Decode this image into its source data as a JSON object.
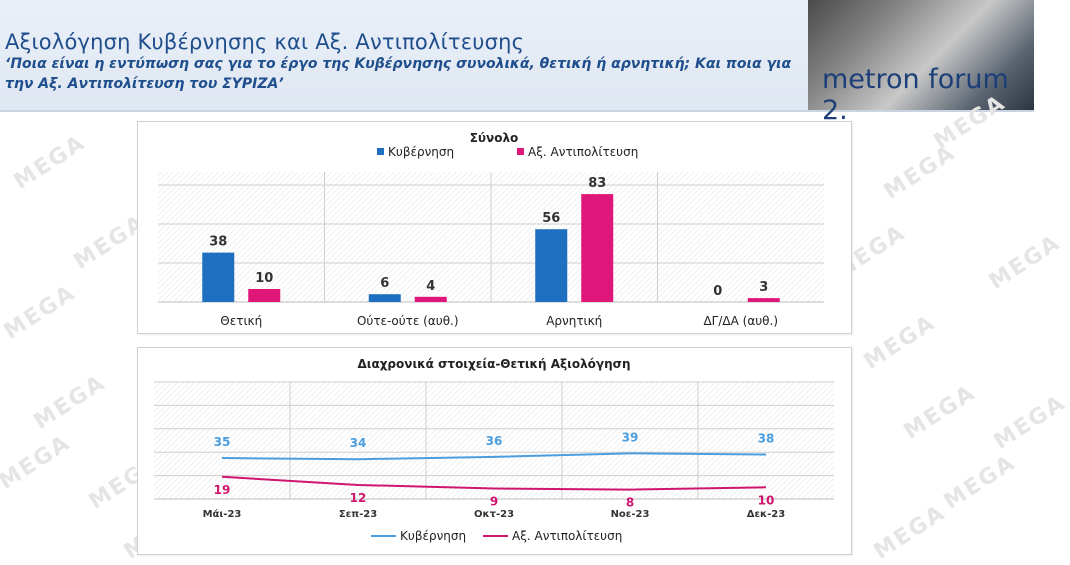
{
  "header": {
    "title": "Αξιολόγηση Κυβέρνησης και Αξ. Αντιπολίτευσης",
    "subtitle": "‘Ποια είναι η εντύπωση σας για το έργο της Κυβέρνησης συνολικά, θετική ή αρνητική; Και ποια για την Αξ. Αντιπολίτευση του ΣΥΡΙΖΑ’",
    "logo_text": "metron forum 2."
  },
  "watermark": {
    "text": "MEGA"
  },
  "colors": {
    "government": "#1f6fc0",
    "opposition": "#e0177a",
    "line_government": "#4a9ee0",
    "line_opposition": "#d0156f"
  },
  "chart_data": [
    {
      "type": "bar",
      "title": "Σύνολο",
      "categories": [
        "Θετική",
        "Ούτε-ούτε (αυθ.)",
        "Αρνητική",
        "ΔΓ/ΔΑ (αυθ.)"
      ],
      "series": [
        {
          "name": "Κυβέρνηση",
          "values": [
            38,
            6,
            56,
            0
          ]
        },
        {
          "name": "Αξ. Αντιπολίτευση",
          "values": [
            10,
            4,
            83,
            3
          ]
        }
      ],
      "ylim": [
        0,
        100
      ],
      "legend": "top",
      "grid": true
    },
    {
      "type": "line",
      "title": "Διαχρονικά στοιχεία-Θετική Αξιολόγηση",
      "x": [
        "Μάι-23",
        "Σεπ-23",
        "Οκτ-23",
        "Νοε-23",
        "Δεκ-23"
      ],
      "series": [
        {
          "name": "Κυβέρνηση",
          "values": [
            35,
            34,
            36,
            39,
            38
          ]
        },
        {
          "name": "Αξ. Αντιπολίτευση",
          "values": [
            19,
            12,
            9,
            8,
            10
          ]
        }
      ],
      "ylim": [
        0,
        100
      ],
      "legend": "bottom",
      "grid": true
    }
  ]
}
